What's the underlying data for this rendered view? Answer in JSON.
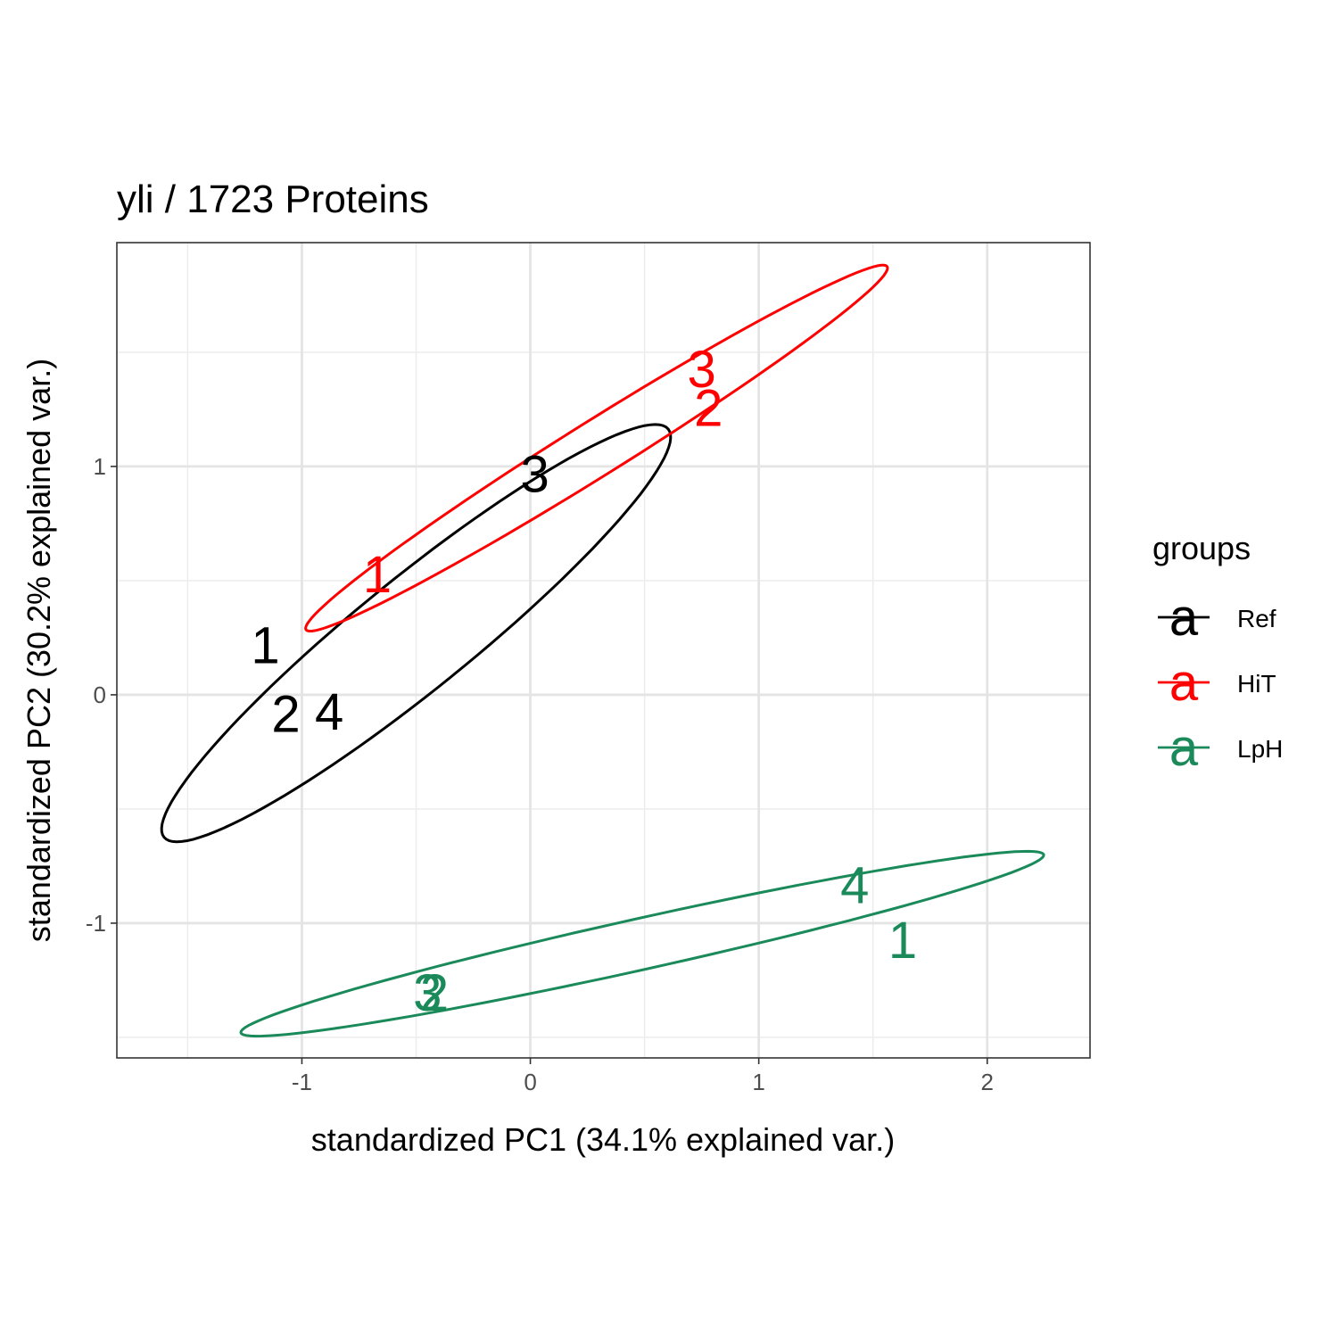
{
  "chart_data": {
    "type": "scatter",
    "title": "yli /  1723  Proteins",
    "xlabel": "standardized PC1 (34.1% explained var.)",
    "ylabel": "standardized PC2 (30.2% explained var.)",
    "xlim": [
      -1.81,
      2.45
    ],
    "ylim": [
      -1.59,
      1.98
    ],
    "x_ticks": [
      -1,
      0,
      1,
      2
    ],
    "y_ticks": [
      -1,
      0,
      1
    ],
    "grid": true,
    "legend": {
      "title": "groups",
      "position": "right",
      "key_glyph": "a"
    },
    "series": [
      {
        "name": "Ref",
        "color": "#000000",
        "points": [
          {
            "label": "1",
            "x": -1.16,
            "y": 0.22
          },
          {
            "label": "2",
            "x": -1.07,
            "y": -0.08
          },
          {
            "label": "4",
            "x": -0.88,
            "y": -0.07
          },
          {
            "label": "3",
            "x": 0.02,
            "y": 0.97
          }
        ],
        "ellipse": {
          "cx": -0.5,
          "cy": 0.27,
          "angle_deg": 39,
          "a": 1.42,
          "b": 0.245
        }
      },
      {
        "name": "HiT",
        "color": "#ff0000",
        "points": [
          {
            "label": "1",
            "x": -0.67,
            "y": 0.53
          },
          {
            "label": "3",
            "x": 0.75,
            "y": 1.43
          },
          {
            "label": "2",
            "x": 0.78,
            "y": 1.26
          }
        ],
        "ellipse": {
          "cx": 0.29,
          "cy": 1.08,
          "angle_deg": 32,
          "a": 1.5,
          "b": 0.12
        }
      },
      {
        "name": "LpH",
        "color": "#1b8a5a",
        "points": [
          {
            "label": "4",
            "x": 1.42,
            "y": -0.83
          },
          {
            "label": "1",
            "x": 1.63,
            "y": -1.07
          },
          {
            "label": "3",
            "x": -0.45,
            "y": -1.3
          },
          {
            "label": "2",
            "x": -0.42,
            "y": -1.3
          }
        ],
        "ellipse": {
          "cx": 0.49,
          "cy": -1.09,
          "angle_deg": 12.5,
          "a": 1.8,
          "b": 0.112
        }
      }
    ]
  }
}
